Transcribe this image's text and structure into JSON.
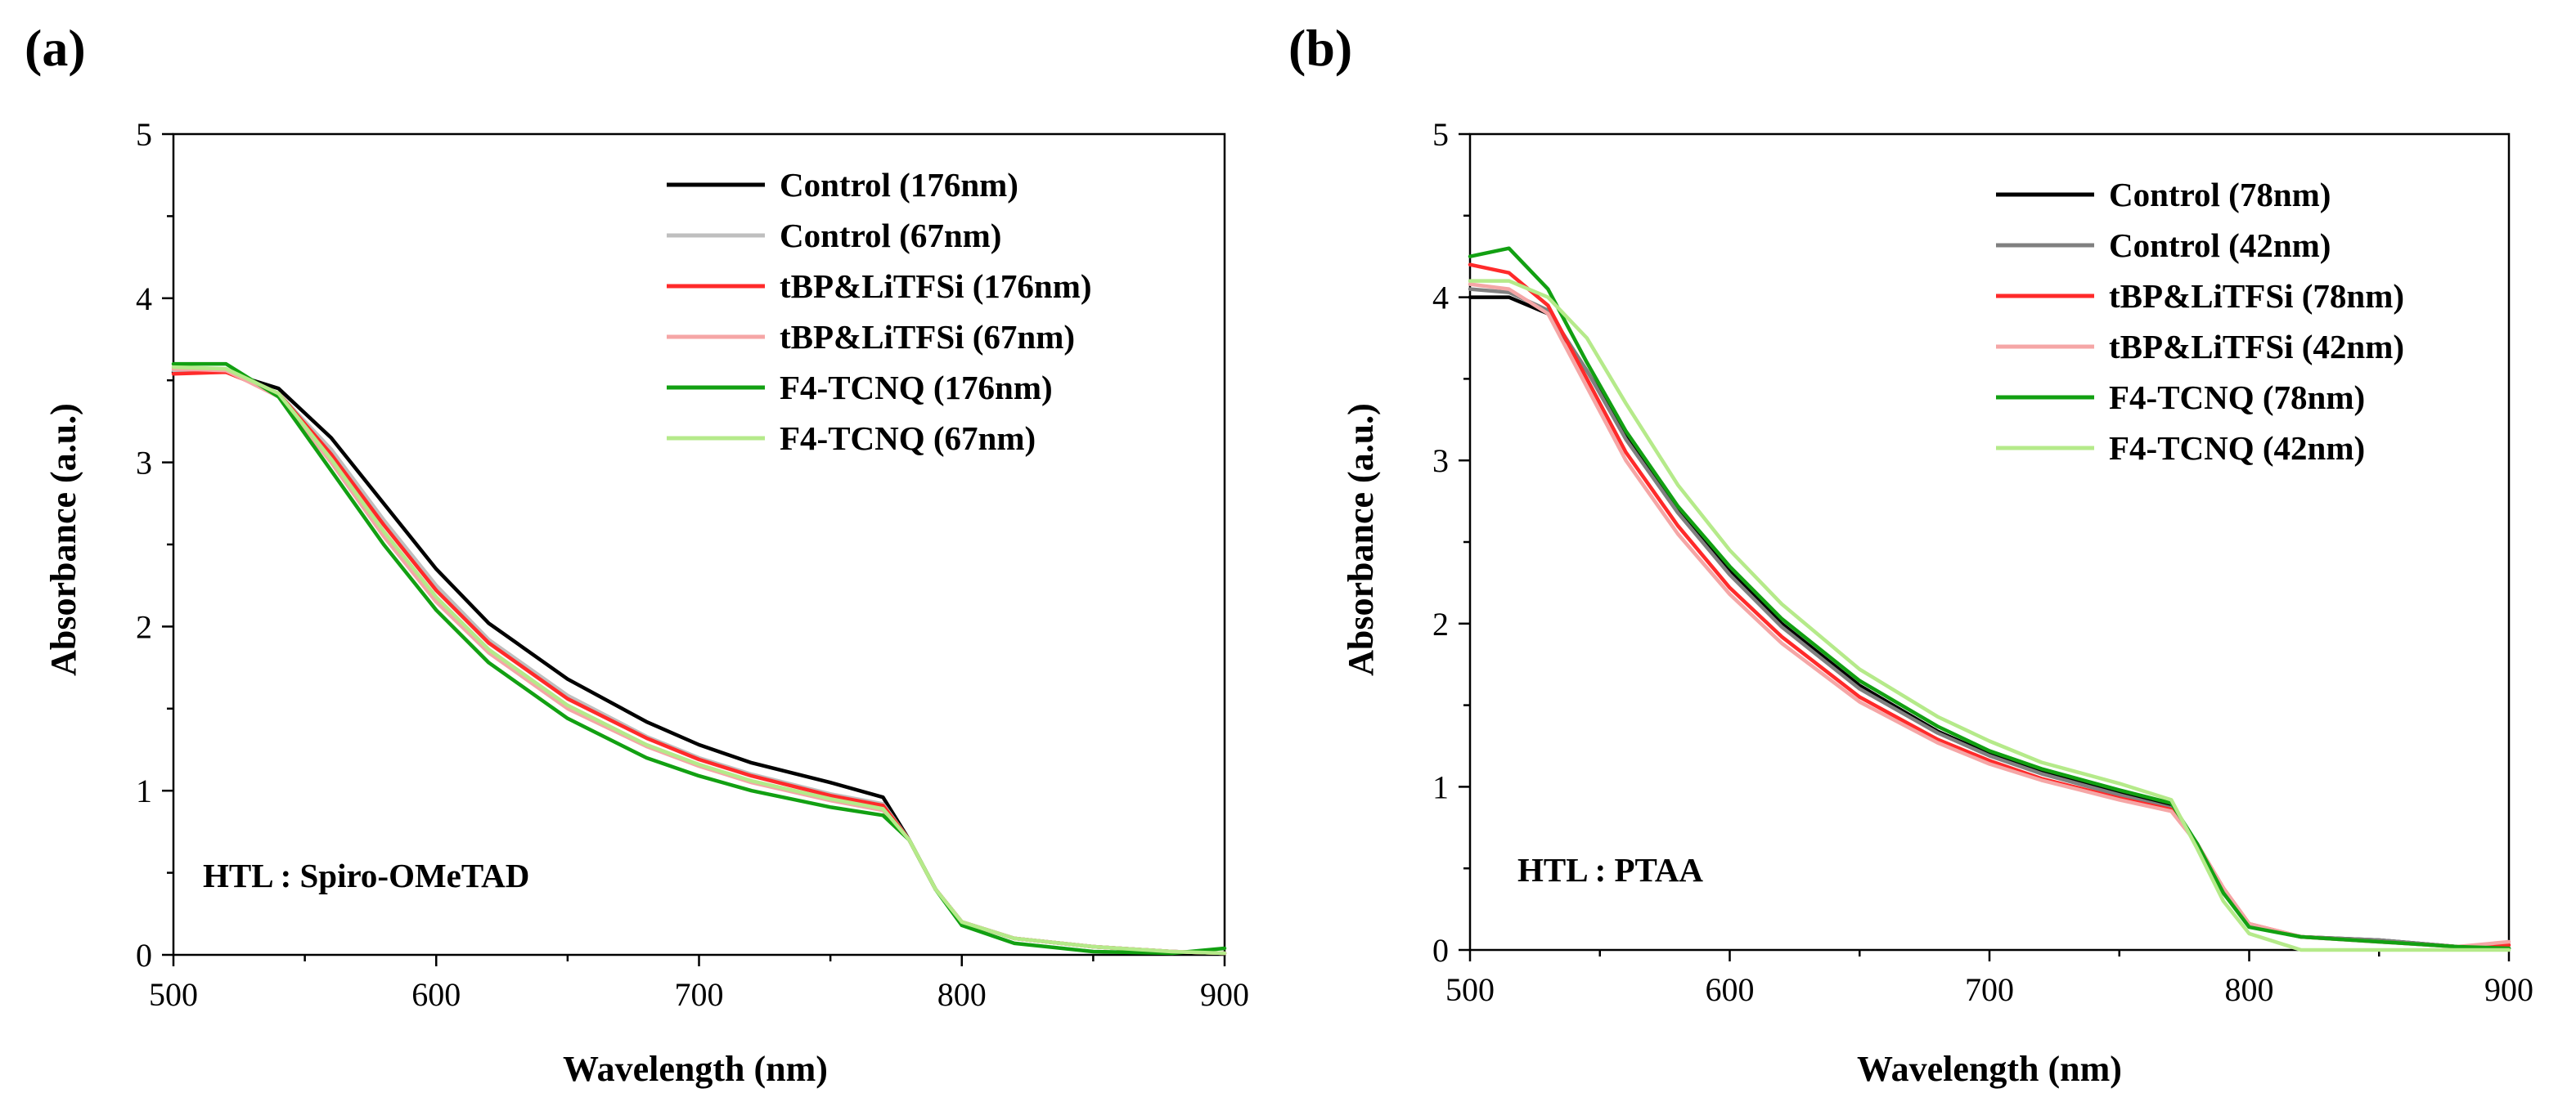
{
  "chart_data": [
    {
      "type": "line",
      "panel_label": "(a)",
      "xlabel": "Wavelength (nm)",
      "ylabel": "Absorbance (a.u.)",
      "xlim": [
        500,
        900
      ],
      "ylim": [
        0,
        5
      ],
      "xticks": [
        500,
        600,
        700,
        800,
        900
      ],
      "yticks": [
        0,
        1,
        2,
        3,
        4,
        5
      ],
      "legend_position": "top-right",
      "annotation": "HTL : Spiro-OMeTAD",
      "x": [
        500,
        520,
        540,
        560,
        580,
        600,
        620,
        650,
        680,
        700,
        720,
        750,
        770,
        780,
        790,
        800,
        820,
        850,
        880,
        900
      ],
      "series": [
        {
          "name": "Control (176nm)",
          "color": "#000000",
          "values": [
            3.55,
            3.55,
            3.45,
            3.15,
            2.75,
            2.35,
            2.02,
            1.68,
            1.42,
            1.28,
            1.17,
            1.05,
            0.96,
            0.7,
            0.4,
            0.2,
            0.1,
            0.05,
            0.02,
            0.01
          ]
        },
        {
          "name": "Control (67nm)",
          "color": "#bfbfbf",
          "values": [
            3.56,
            3.55,
            3.42,
            3.08,
            2.65,
            2.25,
            1.92,
            1.58,
            1.33,
            1.2,
            1.1,
            0.98,
            0.92,
            0.7,
            0.4,
            0.2,
            0.1,
            0.05,
            0.02,
            0.01
          ]
        },
        {
          "name": "tBP&LiTFSi (176nm)",
          "color": "#ff2a2a",
          "values": [
            3.54,
            3.55,
            3.42,
            3.05,
            2.62,
            2.22,
            1.9,
            1.56,
            1.32,
            1.19,
            1.09,
            0.97,
            0.91,
            0.7,
            0.4,
            0.2,
            0.1,
            0.05,
            0.02,
            0.01
          ]
        },
        {
          "name": "tBP&LiTFSi (67nm)",
          "color": "#f5a6a6",
          "values": [
            3.57,
            3.56,
            3.4,
            3.0,
            2.55,
            2.15,
            1.84,
            1.5,
            1.27,
            1.15,
            1.05,
            0.94,
            0.88,
            0.7,
            0.4,
            0.2,
            0.1,
            0.05,
            0.02,
            0.01
          ]
        },
        {
          "name": "F4-TCNQ (176nm)",
          "color": "#12a012",
          "values": [
            3.6,
            3.6,
            3.4,
            2.95,
            2.5,
            2.1,
            1.78,
            1.44,
            1.2,
            1.09,
            1.0,
            0.9,
            0.85,
            0.7,
            0.4,
            0.18,
            0.07,
            0.02,
            0.01,
            0.04
          ]
        },
        {
          "name": "F4-TCNQ (67nm)",
          "color": "#b5ea8a",
          "values": [
            3.58,
            3.57,
            3.42,
            3.02,
            2.58,
            2.18,
            1.86,
            1.52,
            1.28,
            1.16,
            1.06,
            0.95,
            0.89,
            0.7,
            0.4,
            0.2,
            0.1,
            0.05,
            0.02,
            0.01
          ]
        }
      ]
    },
    {
      "type": "line",
      "panel_label": "(b)",
      "xlabel": "Wavelength (nm)",
      "ylabel": "Absorbance (a.u.)",
      "xlim": [
        500,
        900
      ],
      "ylim": [
        0,
        5
      ],
      "xticks": [
        500,
        600,
        700,
        800,
        900
      ],
      "yticks": [
        0,
        1,
        2,
        3,
        4,
        5
      ],
      "legend_position": "top-right",
      "annotation": "HTL : PTAA",
      "x": [
        500,
        515,
        530,
        545,
        560,
        580,
        600,
        620,
        650,
        680,
        700,
        720,
        750,
        770,
        780,
        790,
        800,
        820,
        850,
        880,
        900
      ],
      "series": [
        {
          "name": "Control (78nm)",
          "color": "#000000",
          "values": [
            4.0,
            4.0,
            3.9,
            3.55,
            3.15,
            2.7,
            2.32,
            2.0,
            1.62,
            1.34,
            1.2,
            1.09,
            0.96,
            0.88,
            0.65,
            0.35,
            0.15,
            0.08,
            0.06,
            0.02,
            0.01
          ]
        },
        {
          "name": "Control (42nm)",
          "color": "#808080",
          "values": [
            4.05,
            4.03,
            3.92,
            3.55,
            3.13,
            2.68,
            2.3,
            1.98,
            1.6,
            1.33,
            1.19,
            1.08,
            0.95,
            0.87,
            0.65,
            0.35,
            0.15,
            0.08,
            0.06,
            0.02,
            0.01
          ]
        },
        {
          "name": "tBP&LiTFSi (78nm)",
          "color": "#ff2a2a",
          "values": [
            4.2,
            4.15,
            3.95,
            3.5,
            3.05,
            2.6,
            2.22,
            1.92,
            1.55,
            1.29,
            1.16,
            1.05,
            0.93,
            0.86,
            0.65,
            0.38,
            0.16,
            0.08,
            0.05,
            0.02,
            0.03
          ]
        },
        {
          "name": "tBP&LiTFSi (42nm)",
          "color": "#f5a6a6",
          "values": [
            4.08,
            4.05,
            3.9,
            3.45,
            3.0,
            2.55,
            2.18,
            1.88,
            1.52,
            1.27,
            1.14,
            1.04,
            0.92,
            0.85,
            0.65,
            0.38,
            0.16,
            0.08,
            0.05,
            0.02,
            0.05
          ]
        },
        {
          "name": "F4-TCNQ (78nm)",
          "color": "#12a012",
          "values": [
            4.25,
            4.3,
            4.05,
            3.6,
            3.18,
            2.72,
            2.35,
            2.03,
            1.65,
            1.37,
            1.22,
            1.11,
            0.98,
            0.9,
            0.65,
            0.35,
            0.14,
            0.08,
            0.05,
            0.02,
            0.01
          ]
        },
        {
          "name": "F4-TCNQ (42nm)",
          "color": "#b5ea8a",
          "values": [
            4.1,
            4.1,
            4.0,
            3.75,
            3.35,
            2.85,
            2.45,
            2.12,
            1.72,
            1.43,
            1.28,
            1.15,
            1.02,
            0.92,
            0.62,
            0.3,
            0.1,
            0.0,
            0.0,
            0.0,
            0.0
          ]
        }
      ]
    }
  ]
}
